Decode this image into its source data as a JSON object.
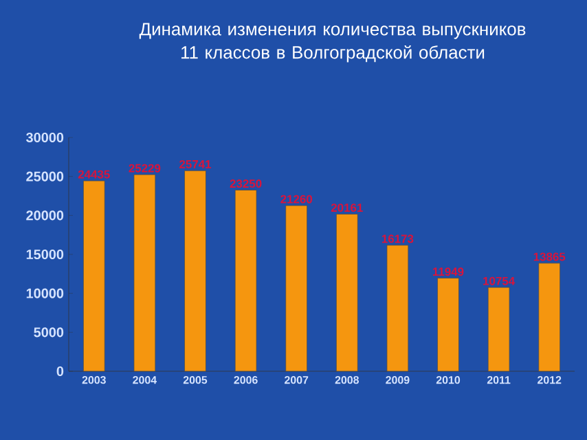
{
  "chart_data": {
    "type": "bar",
    "title": "Динамика изменения количества выпускников 11 классов в Волгоградской области",
    "categories": [
      "2003",
      "2004",
      "2005",
      "2006",
      "2007",
      "2008",
      "2009",
      "2010",
      "2011",
      "2012"
    ],
    "values": [
      24435,
      25229,
      25741,
      23250,
      21260,
      20161,
      16173,
      11949,
      10754,
      13865
    ],
    "color": "#f5960f",
    "ylim": [
      0,
      30000
    ],
    "yticks": [
      0,
      5000,
      10000,
      15000,
      20000,
      25000,
      30000
    ],
    "data_labels": true,
    "grid": false
  }
}
